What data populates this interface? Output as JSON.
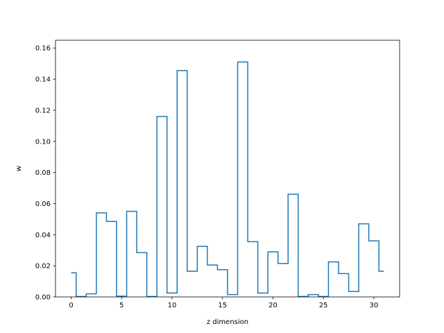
{
  "chart_data": {
    "type": "line",
    "drawstyle": "steps-mid",
    "xlabel": "z dimension",
    "ylabel": "w",
    "xlim": [
      -1.55,
      32.55
    ],
    "ylim": [
      0.0,
      0.165
    ],
    "x_ticks": [
      0,
      5,
      10,
      15,
      20,
      25,
      30
    ],
    "y_ticks": [
      0.0,
      0.02,
      0.04,
      0.06,
      0.08,
      0.1,
      0.12,
      0.14,
      0.16
    ],
    "y_tick_labels": [
      "0.00",
      "0.02",
      "0.04",
      "0.06",
      "0.08",
      "0.10",
      "0.12",
      "0.14",
      "0.16"
    ],
    "grid": false,
    "series": [
      {
        "color": "#1f77b4",
        "x": [
          0,
          1,
          2,
          3,
          4,
          5,
          6,
          7,
          8,
          9,
          10,
          11,
          12,
          13,
          14,
          15,
          16,
          17,
          18,
          19,
          20,
          21,
          22,
          23,
          24,
          25,
          26,
          27,
          28,
          29,
          30,
          31
        ],
        "values": [
          0.0155,
          0.0003,
          0.002,
          0.054,
          0.0485,
          0.0005,
          0.055,
          0.0285,
          0.0003,
          0.116,
          0.0025,
          0.1455,
          0.0165,
          0.0325,
          0.0205,
          0.0175,
          0.0015,
          0.151,
          0.0355,
          0.0025,
          0.029,
          0.0215,
          0.066,
          0.0003,
          0.0015,
          0.0003,
          0.0225,
          0.015,
          0.0035,
          0.047,
          0.036,
          0.0165
        ]
      }
    ]
  }
}
